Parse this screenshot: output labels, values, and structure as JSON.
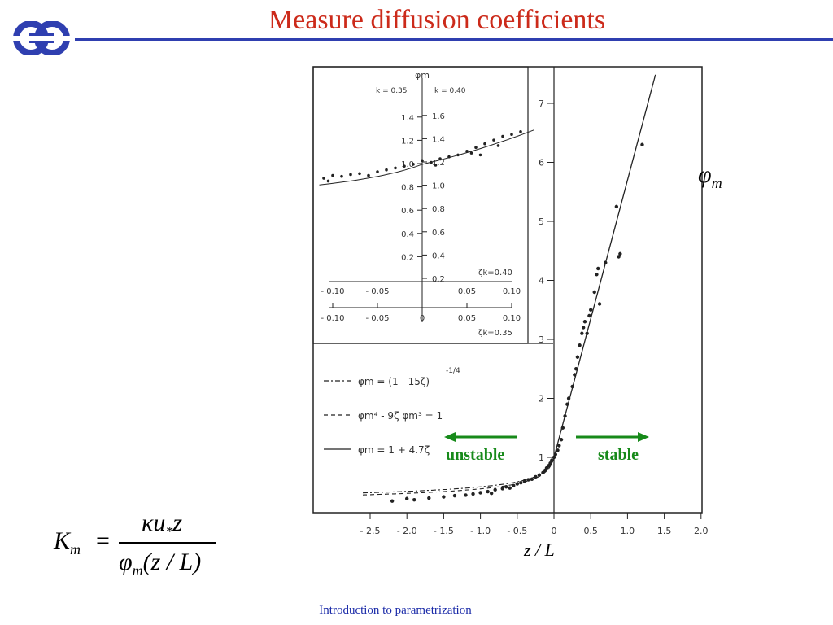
{
  "slide": {
    "title": "Measure diffusion coefficients",
    "footer": "Introduction to parametrization",
    "colors": {
      "title": "#cc2a1a",
      "rule": "#2f3fb0",
      "footer": "#1a2aa8",
      "arrows": "#178a1a"
    },
    "logo_icon": "ecmwf-logo-icon"
  },
  "labels": {
    "phi": "φ",
    "phi_sub": "m",
    "zl": "z / L",
    "unstable": "unstable",
    "stable": "stable"
  },
  "formula": {
    "lhs": "K",
    "lhs_sub": "m",
    "equals": "=",
    "numerator": "κu",
    "num_sub": "*",
    "num_z": "z",
    "den_phi": "φ",
    "den_sub": "m",
    "den_arg": "(z / L)"
  },
  "chart_data": {
    "type": "scatter",
    "x_ticks": [
      "- 2.5",
      "- 2.0",
      "- 1.5",
      "- 1.0",
      "- 0.5",
      "0",
      "0.5",
      "1.0",
      "1.5",
      "2.0"
    ],
    "y_ticks": [
      "1",
      "2",
      "3",
      "4",
      "5",
      "6",
      "7"
    ],
    "xlim": [
      -2.5,
      2.0
    ],
    "ylim": [
      0,
      7.5
    ],
    "legend": [
      {
        "style": "dash-dot",
        "text": "φm = (1 - 15ζ)",
        "sup": "-1/4"
      },
      {
        "style": "dashed",
        "text": "φm⁴ - 9ζ φm³ = 1",
        "sup": ""
      },
      {
        "style": "solid",
        "text": "φm = 1 + 4.7ζ",
        "sup": ""
      }
    ],
    "main_points": [
      [
        -2.2,
        0.26
      ],
      [
        -2.0,
        0.3
      ],
      [
        -1.9,
        0.28
      ],
      [
        -1.7,
        0.31
      ],
      [
        -1.5,
        0.33
      ],
      [
        -1.35,
        0.35
      ],
      [
        -1.2,
        0.36
      ],
      [
        -1.1,
        0.38
      ],
      [
        -1.0,
        0.4
      ],
      [
        -0.9,
        0.42
      ],
      [
        -0.85,
        0.39
      ],
      [
        -0.8,
        0.45
      ],
      [
        -0.7,
        0.47
      ],
      [
        -0.65,
        0.5
      ],
      [
        -0.6,
        0.48
      ],
      [
        -0.55,
        0.52
      ],
      [
        -0.5,
        0.55
      ],
      [
        -0.45,
        0.57
      ],
      [
        -0.4,
        0.6
      ],
      [
        -0.35,
        0.62
      ],
      [
        -0.3,
        0.63
      ],
      [
        -0.25,
        0.67
      ],
      [
        -0.2,
        0.7
      ],
      [
        -0.15,
        0.74
      ],
      [
        -0.12,
        0.78
      ],
      [
        -0.1,
        0.82
      ],
      [
        -0.07,
        0.86
      ],
      [
        -0.05,
        0.9
      ],
      [
        -0.03,
        0.95
      ],
      [
        0.0,
        1.0
      ],
      [
        0.02,
        1.05
      ],
      [
        0.05,
        1.12
      ],
      [
        0.07,
        1.2
      ],
      [
        0.1,
        1.3
      ],
      [
        0.12,
        1.5
      ],
      [
        0.15,
        1.7
      ],
      [
        0.18,
        1.9
      ],
      [
        0.2,
        2.0
      ],
      [
        0.25,
        2.2
      ],
      [
        0.28,
        2.4
      ],
      [
        0.3,
        2.5
      ],
      [
        0.32,
        2.7
      ],
      [
        0.35,
        2.9
      ],
      [
        0.38,
        3.1
      ],
      [
        0.4,
        3.2
      ],
      [
        0.42,
        3.3
      ],
      [
        0.45,
        3.1
      ],
      [
        0.48,
        3.4
      ],
      [
        0.5,
        3.5
      ],
      [
        0.55,
        3.8
      ],
      [
        0.58,
        4.1
      ],
      [
        0.6,
        4.2
      ],
      [
        0.62,
        3.6
      ],
      [
        0.7,
        4.3
      ],
      [
        0.85,
        5.25
      ],
      [
        0.88,
        4.4
      ],
      [
        0.9,
        4.45
      ],
      [
        1.2,
        6.3
      ]
    ],
    "fit_line": {
      "slope": 4.7,
      "intercept": 1.0
    },
    "inset": {
      "header_left": "k = 0.35",
      "header_right": "k = 0.40",
      "yaxis_title": "φm",
      "left_ticks": [
        "0.2",
        "0.4",
        "0.6",
        "0.8",
        "1.0",
        "1.2",
        "1.4"
      ],
      "right_ticks": [
        "0.2",
        "0.4",
        "0.6",
        "0.8",
        "1.0",
        "1.2",
        "1.4",
        "1.6"
      ],
      "x_ticks_upper": [
        "- 0.10",
        "- 0.05",
        "0.05",
        "0.10"
      ],
      "x_ticks_lower": [
        "- 0.10",
        "- 0.05",
        "0",
        "0.05",
        "0.10"
      ],
      "xlabel_upper": "ζk=0.40",
      "xlabel_lower": "ζk=0.35",
      "points": [
        [
          -0.11,
          0.85
        ],
        [
          -0.105,
          0.82
        ],
        [
          -0.1,
          0.88
        ],
        [
          -0.09,
          0.87
        ],
        [
          -0.08,
          0.89
        ],
        [
          -0.07,
          0.9
        ],
        [
          -0.06,
          0.88
        ],
        [
          -0.05,
          0.92
        ],
        [
          -0.04,
          0.94
        ],
        [
          -0.03,
          0.96
        ],
        [
          -0.02,
          0.98
        ],
        [
          -0.01,
          1.0
        ],
        [
          0.0,
          1.04
        ],
        [
          0.01,
          1.02
        ],
        [
          0.015,
          0.99
        ],
        [
          0.02,
          1.06
        ],
        [
          0.03,
          1.08
        ],
        [
          0.04,
          1.1
        ],
        [
          0.05,
          1.14
        ],
        [
          0.055,
          1.12
        ],
        [
          0.06,
          1.18
        ],
        [
          0.07,
          1.22
        ],
        [
          0.08,
          1.26
        ],
        [
          0.09,
          1.3
        ],
        [
          0.1,
          1.32
        ],
        [
          0.11,
          1.35
        ],
        [
          0.065,
          1.1
        ],
        [
          0.085,
          1.2
        ]
      ]
    }
  }
}
